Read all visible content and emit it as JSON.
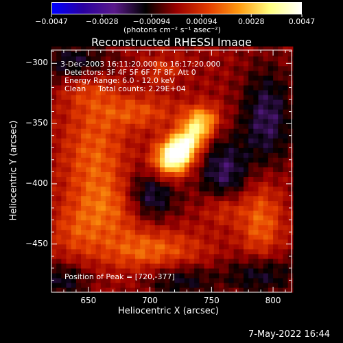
{
  "chart_data": {
    "type": "heatmap",
    "title": "Reconstructed RHESSI Image",
    "xlabel": "Heliocentric X (arcsec)",
    "ylabel": "Heliocentric Y (arcsec)",
    "xlim": [
      620,
      815
    ],
    "ylim": [
      -490,
      -289
    ],
    "x_ticks": [
      650,
      700,
      750,
      800
    ],
    "y_ticks": [
      -300,
      -350,
      -400,
      -450
    ],
    "colorbar": {
      "units": "(photons cm⁻² s⁻¹ asec⁻²)",
      "range": [
        -0.0047,
        0.0047
      ],
      "tick_labels": [
        "-0.0047",
        "-0.0028",
        "-0.00094",
        "0.00094",
        "0.0028",
        "0.0047"
      ],
      "colormap_stops": [
        "#0000ff",
        "#2a00a0",
        "#5a1a8a",
        "#000000",
        "#9a0000",
        "#e23a00",
        "#ff9a10",
        "#ffff80",
        "#ffffff"
      ]
    },
    "annotations": {
      "line1": "3-Dec-2003 16:11:20.000 to 16:17:20.000",
      "line2": "Detectors: 3F 4F 5F 6F 7F 8F, Att 0",
      "line3": "Energy Range: 6.0 - 12.0 keV",
      "line4_a": "Clean",
      "line4_b": "Total counts: 2.29E+04",
      "peak": "Position of Peak = [720,-377]"
    },
    "peak": {
      "x": 720,
      "y": -377,
      "value": 0.0047
    }
  },
  "footer": {
    "timestamp": "7-May-2022 16:44"
  }
}
